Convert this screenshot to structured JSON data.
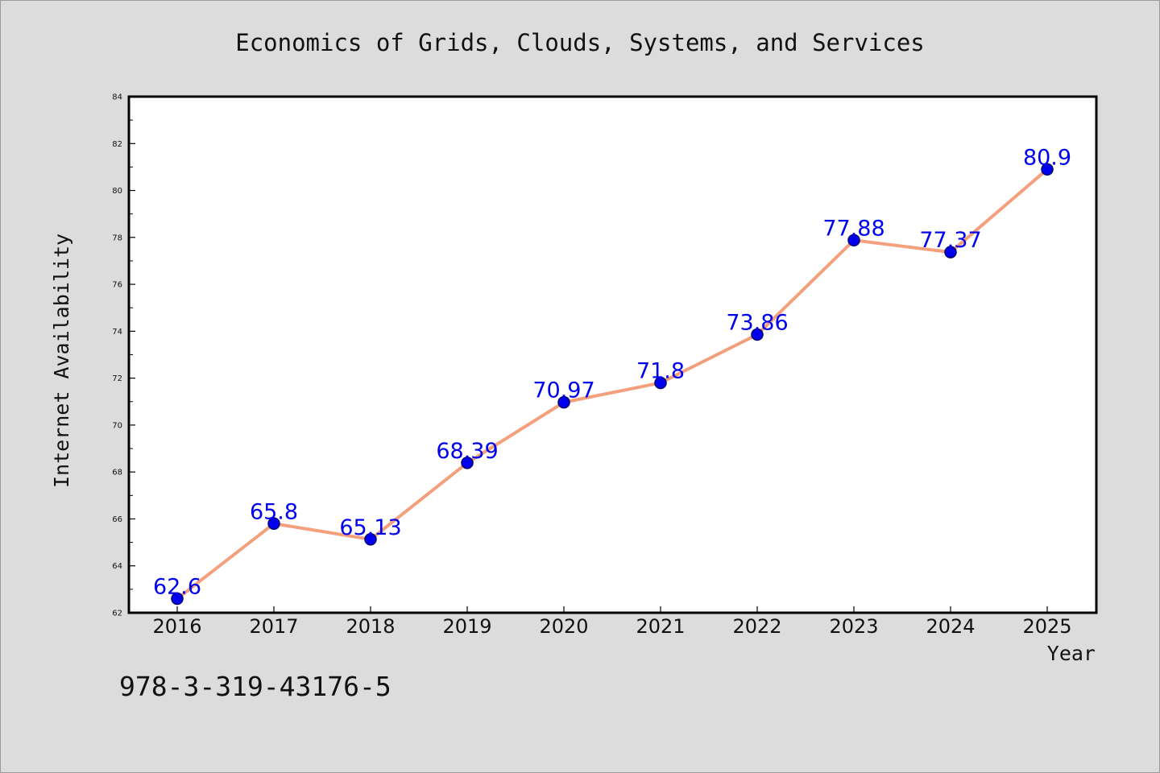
{
  "chart_data": {
    "type": "line",
    "title": "Economics of Grids, Clouds, Systems, and Services",
    "xlabel": "Year",
    "ylabel": "Internet Availability",
    "categories": [
      "2016",
      "2017",
      "2018",
      "2019",
      "2020",
      "2021",
      "2022",
      "2023",
      "2024",
      "2025"
    ],
    "series": [
      {
        "values": [
          62.6,
          65.8,
          65.13,
          68.39,
          70.97,
          71.8,
          73.86,
          77.88,
          77.37,
          80.9
        ],
        "data_labels": [
          "62.6",
          "65.8",
          "65.13",
          "68.39",
          "70.97",
          "71.8",
          "73.86",
          "77.88",
          "77.37",
          "80.9"
        ]
      }
    ],
    "ylim": [
      62,
      84
    ],
    "yticks": [
      "62",
      "64",
      "66",
      "68",
      "70",
      "72",
      "74",
      "76",
      "78",
      "80",
      "82",
      "84"
    ],
    "grid": false,
    "legend": "none",
    "colors": {
      "line": "#f4a07c",
      "marker": "#0000ee",
      "marker_edge": "#00006a",
      "data_label": "#0000ee",
      "background": "#dcdcdc",
      "plot_background": "#ffffff"
    }
  },
  "annotation": {
    "text": "978-3-319-43176-5"
  }
}
